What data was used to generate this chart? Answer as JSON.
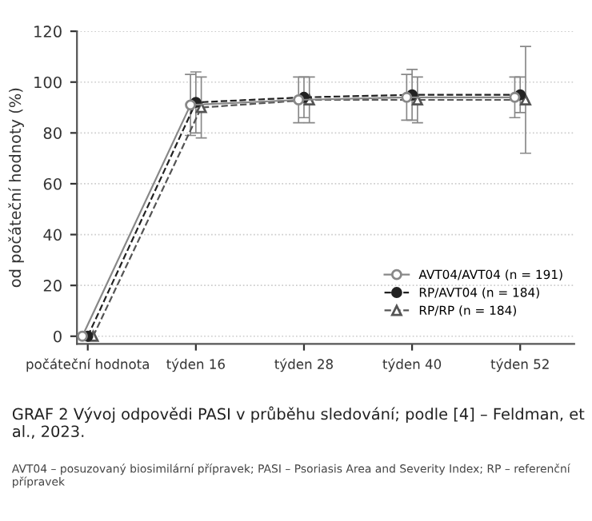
{
  "chart_data": {
    "type": "line",
    "title": "GRAF 2 Vývoj odpovědi PASI v průběhu sledování; podle [4] – Feldman, et al., 2023.",
    "ylabel": "od počáteční hodnoty (%)",
    "annotations": [
      "AVT04 – posuzovaný biosimilární přípravek; PASI – Psoriasis Area and Severity Index; RP – referenční přípravek"
    ],
    "categories": [
      "počáteční hodnota",
      "týden 16",
      "týden 28",
      "týden 40",
      "týden 52"
    ],
    "series": [
      {
        "name": "AVT04/AVT04 (n = 191)",
        "color": "#888888",
        "line_style": "solid",
        "marker": "circle",
        "values": [
          0,
          91,
          93,
          94,
          94
        ],
        "errors": [
          null,
          12,
          9,
          9,
          8
        ]
      },
      {
        "name": "RP/AVT04 (n = 184)",
        "color": "#222222",
        "line_style": "dashed",
        "marker": "circle",
        "values": [
          0,
          92,
          94,
          95,
          95
        ],
        "errors": [
          null,
          12,
          8,
          10,
          7
        ]
      },
      {
        "name": "RP/RP (n = 184)",
        "color": "#555555",
        "line_style": "dashed",
        "marker": "triangle",
        "values": [
          0,
          90,
          93,
          93,
          93
        ],
        "errors": [
          null,
          12,
          9,
          9,
          21
        ]
      }
    ],
    "ylim": [
      -3,
      120
    ],
    "yticks": [
      0,
      20,
      40,
      60,
      80,
      100,
      120
    ],
    "grid": "y",
    "legend": "bottom right"
  }
}
